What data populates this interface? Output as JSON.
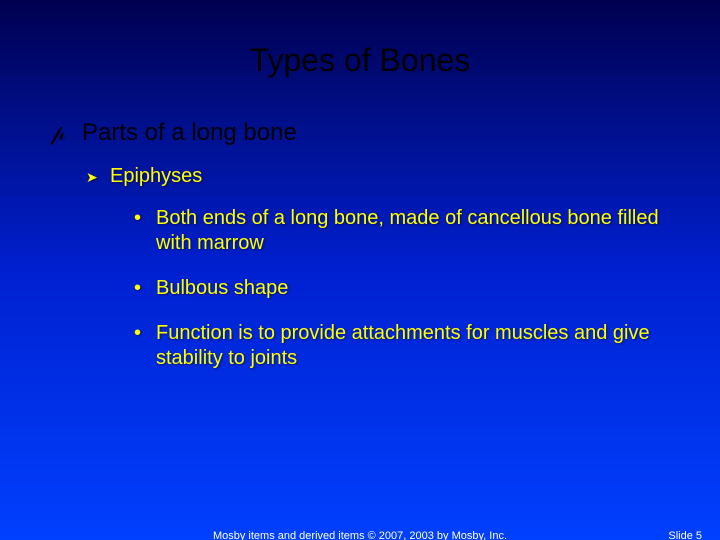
{
  "title": "Types of Bones",
  "level1": {
    "text": "Parts of a long bone"
  },
  "level2": {
    "text": "Epiphyses"
  },
  "level3": {
    "items": [
      "Both ends of a long bone, made of cancellous bone filled with marrow",
      "Bulbous shape",
      "Function is to provide attachments for muscles and give stability to joints"
    ]
  },
  "footer": {
    "copyright": "Mosby items and derived items © 2007, 2003 by Mosby, Inc.",
    "slide": "Slide 5"
  },
  "colors": {
    "title_color": "#000000",
    "level1_color": "#000000",
    "level2_color": "#ffff00",
    "level3_color": "#ffff00",
    "footer_color": "#ffffff",
    "bg_top": "#000050",
    "bg_mid": "#0020d0",
    "bg_bot": "#0040ff"
  },
  "typography": {
    "title_fontsize": 32,
    "l1_fontsize": 24,
    "l2_fontsize": 20,
    "l3_fontsize": 20,
    "footer_fontsize": 11
  }
}
